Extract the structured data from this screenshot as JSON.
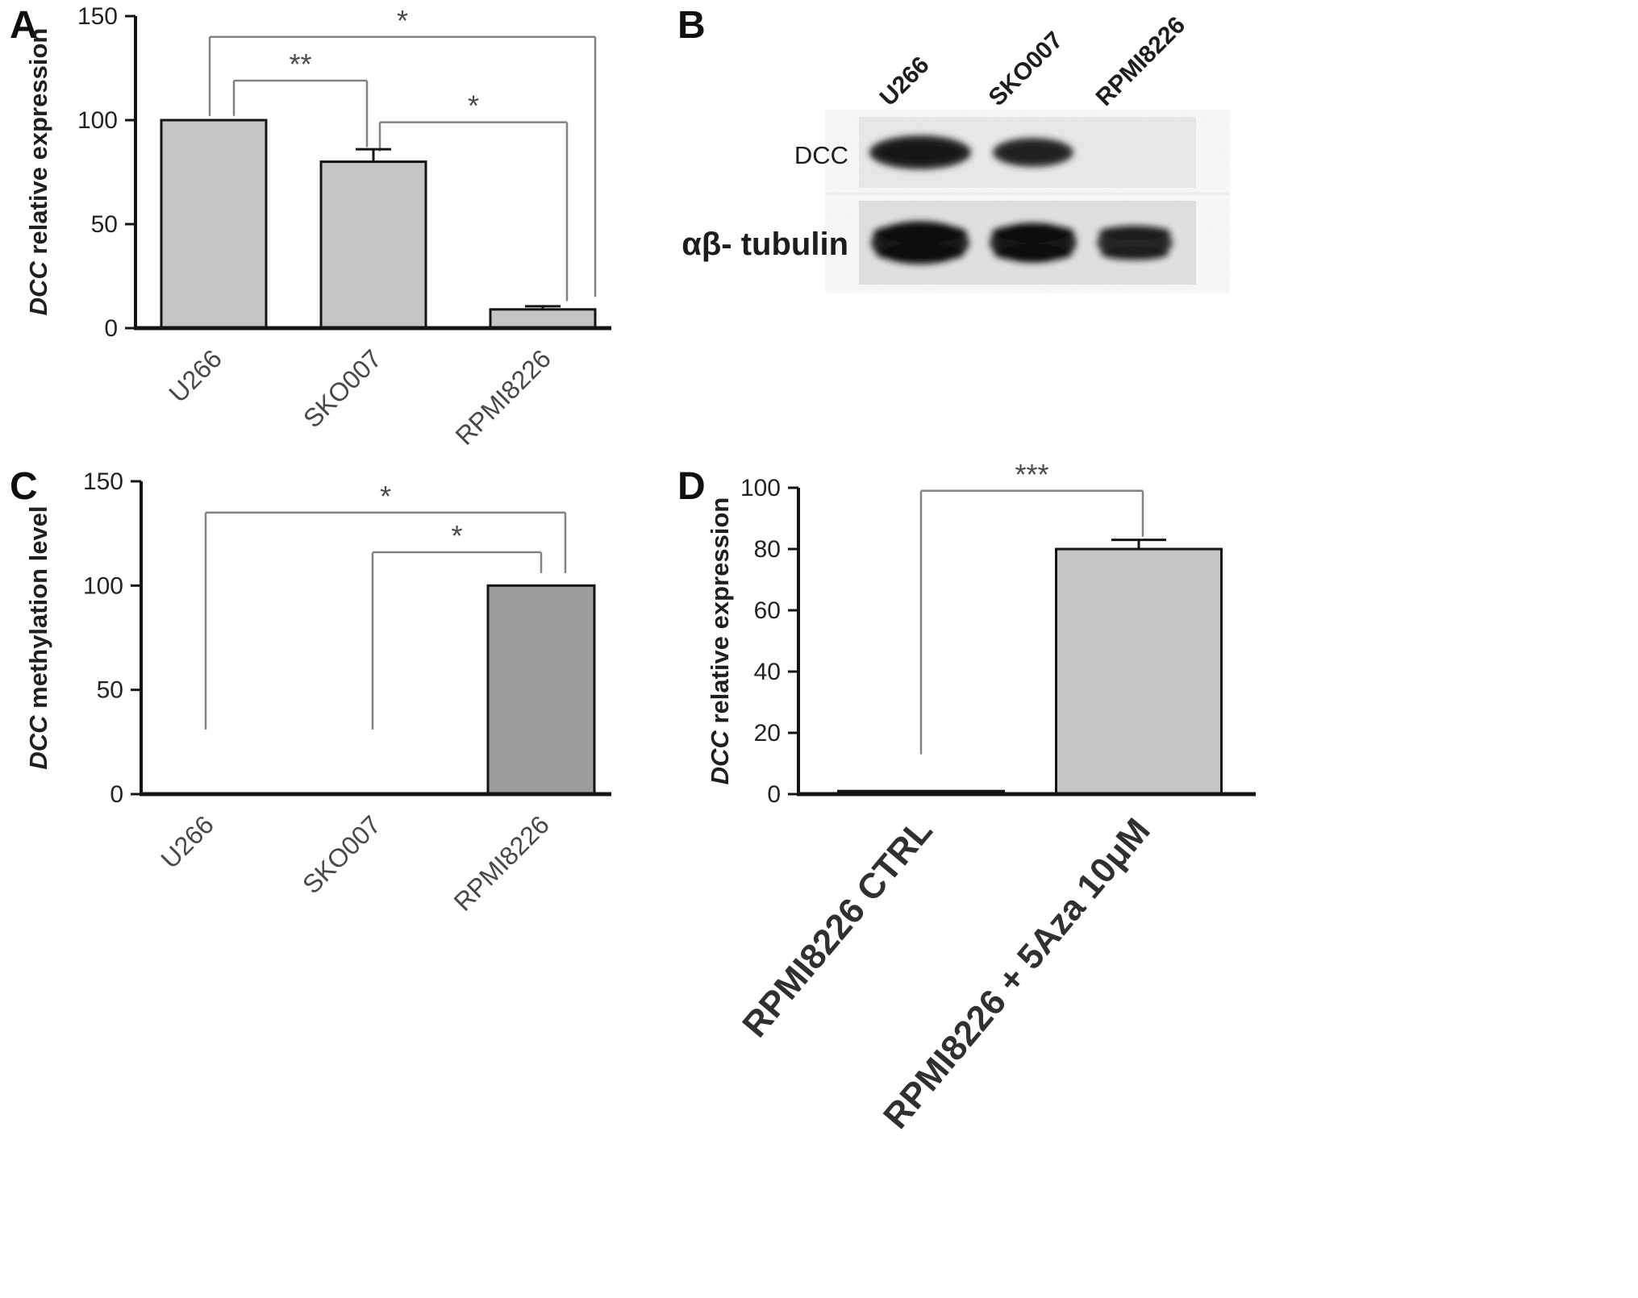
{
  "figure": {
    "background": "#ffffff",
    "panel_labels": {
      "a": "A",
      "b": "B",
      "c": "C",
      "d": "D"
    }
  },
  "chart_data": [
    {
      "id": "chart-a",
      "panel": "A",
      "type": "bar",
      "title": "",
      "ylabel": [
        {
          "text": "DCC",
          "italic": true
        },
        {
          "text": " relative expression",
          "italic": false
        }
      ],
      "xlabel": "",
      "categories": [
        "U266",
        "SKO007",
        "RPMI8226"
      ],
      "values": [
        100,
        80,
        9
      ],
      "errors": [
        0,
        6,
        1.5
      ],
      "ylim": [
        0,
        150
      ],
      "yticks": [
        0,
        50,
        100,
        150
      ],
      "grid": false,
      "legend": "none",
      "bar_colors": [
        "#c5c5c5",
        "#c5c5c5",
        "#c5c5c5"
      ],
      "axis_color": "#141414",
      "bracket_color": "#838383",
      "significance": [
        {
          "label": "**",
          "from": 0,
          "to": 1,
          "y": 119,
          "drop_from": 102,
          "drop_to": 87
        },
        {
          "label": "*",
          "from": 0,
          "to": 2,
          "y": 140,
          "drop_from": 102,
          "drop_to": 15
        },
        {
          "label": "*",
          "from": 1,
          "to": 2,
          "y": 99,
          "drop_from": 85,
          "drop_to": 13
        }
      ]
    },
    {
      "id": "chart-c",
      "panel": "C",
      "type": "bar",
      "title": "",
      "ylabel": [
        {
          "text": "DCC",
          "italic": true
        },
        {
          "text": " methylation level",
          "italic": false
        }
      ],
      "xlabel": "",
      "categories": [
        "U266",
        "SKO007",
        "RPMI8226"
      ],
      "values": [
        0,
        0,
        100
      ],
      "errors": [
        0,
        0,
        0
      ],
      "ylim": [
        0,
        150
      ],
      "yticks": [
        0,
        50,
        100,
        150
      ],
      "grid": false,
      "legend": "none",
      "bar_colors": [
        "#9c9c9c",
        "#9c9c9c",
        "#9c9c9c"
      ],
      "axis_color": "#141414",
      "bracket_color": "#838383",
      "significance": [
        {
          "label": "*",
          "from": 0,
          "to": 2,
          "y": 135,
          "drop_from": 31,
          "drop_to": 106
        },
        {
          "label": "*",
          "from": 1,
          "to": 2,
          "y": 116,
          "drop_from": 31,
          "drop_to": 106
        }
      ]
    },
    {
      "id": "chart-d",
      "panel": "D",
      "type": "bar",
      "title": "",
      "ylabel": [
        {
          "text": "DCC",
          "italic": true
        },
        {
          "text": " relative expression",
          "italic": false
        }
      ],
      "xlabel": "",
      "categories": [
        "RPMI8226 CTRL",
        "RPMI8226 + 5Aza 10μM"
      ],
      "values": [
        1,
        80
      ],
      "errors": [
        0,
        3
      ],
      "ylim": [
        0,
        100
      ],
      "yticks": [
        0,
        20,
        40,
        60,
        80,
        100
      ],
      "grid": false,
      "legend": "none",
      "bar_colors": [
        "#111111",
        "#c5c5c5"
      ],
      "axis_color": "#141414",
      "bracket_color": "#838383",
      "significance": [
        {
          "label": "***",
          "from": 0,
          "to": 1,
          "y": 99,
          "drop_from": 13,
          "drop_to": 84
        }
      ]
    }
  ],
  "western_blot": {
    "panel": "B",
    "lane_labels": [
      "U266",
      "SKO007",
      "RPMI8226"
    ],
    "rows": [
      {
        "label": "DCC",
        "band_intensities": [
          1,
          0.95,
          0
        ]
      },
      {
        "label": "αβ- tubulin",
        "band_intensities": [
          1,
          1,
          0.92
        ]
      }
    ],
    "box_colors": [
      "#eaeaea",
      "#e2e2e2"
    ],
    "band_color": "#161616"
  }
}
